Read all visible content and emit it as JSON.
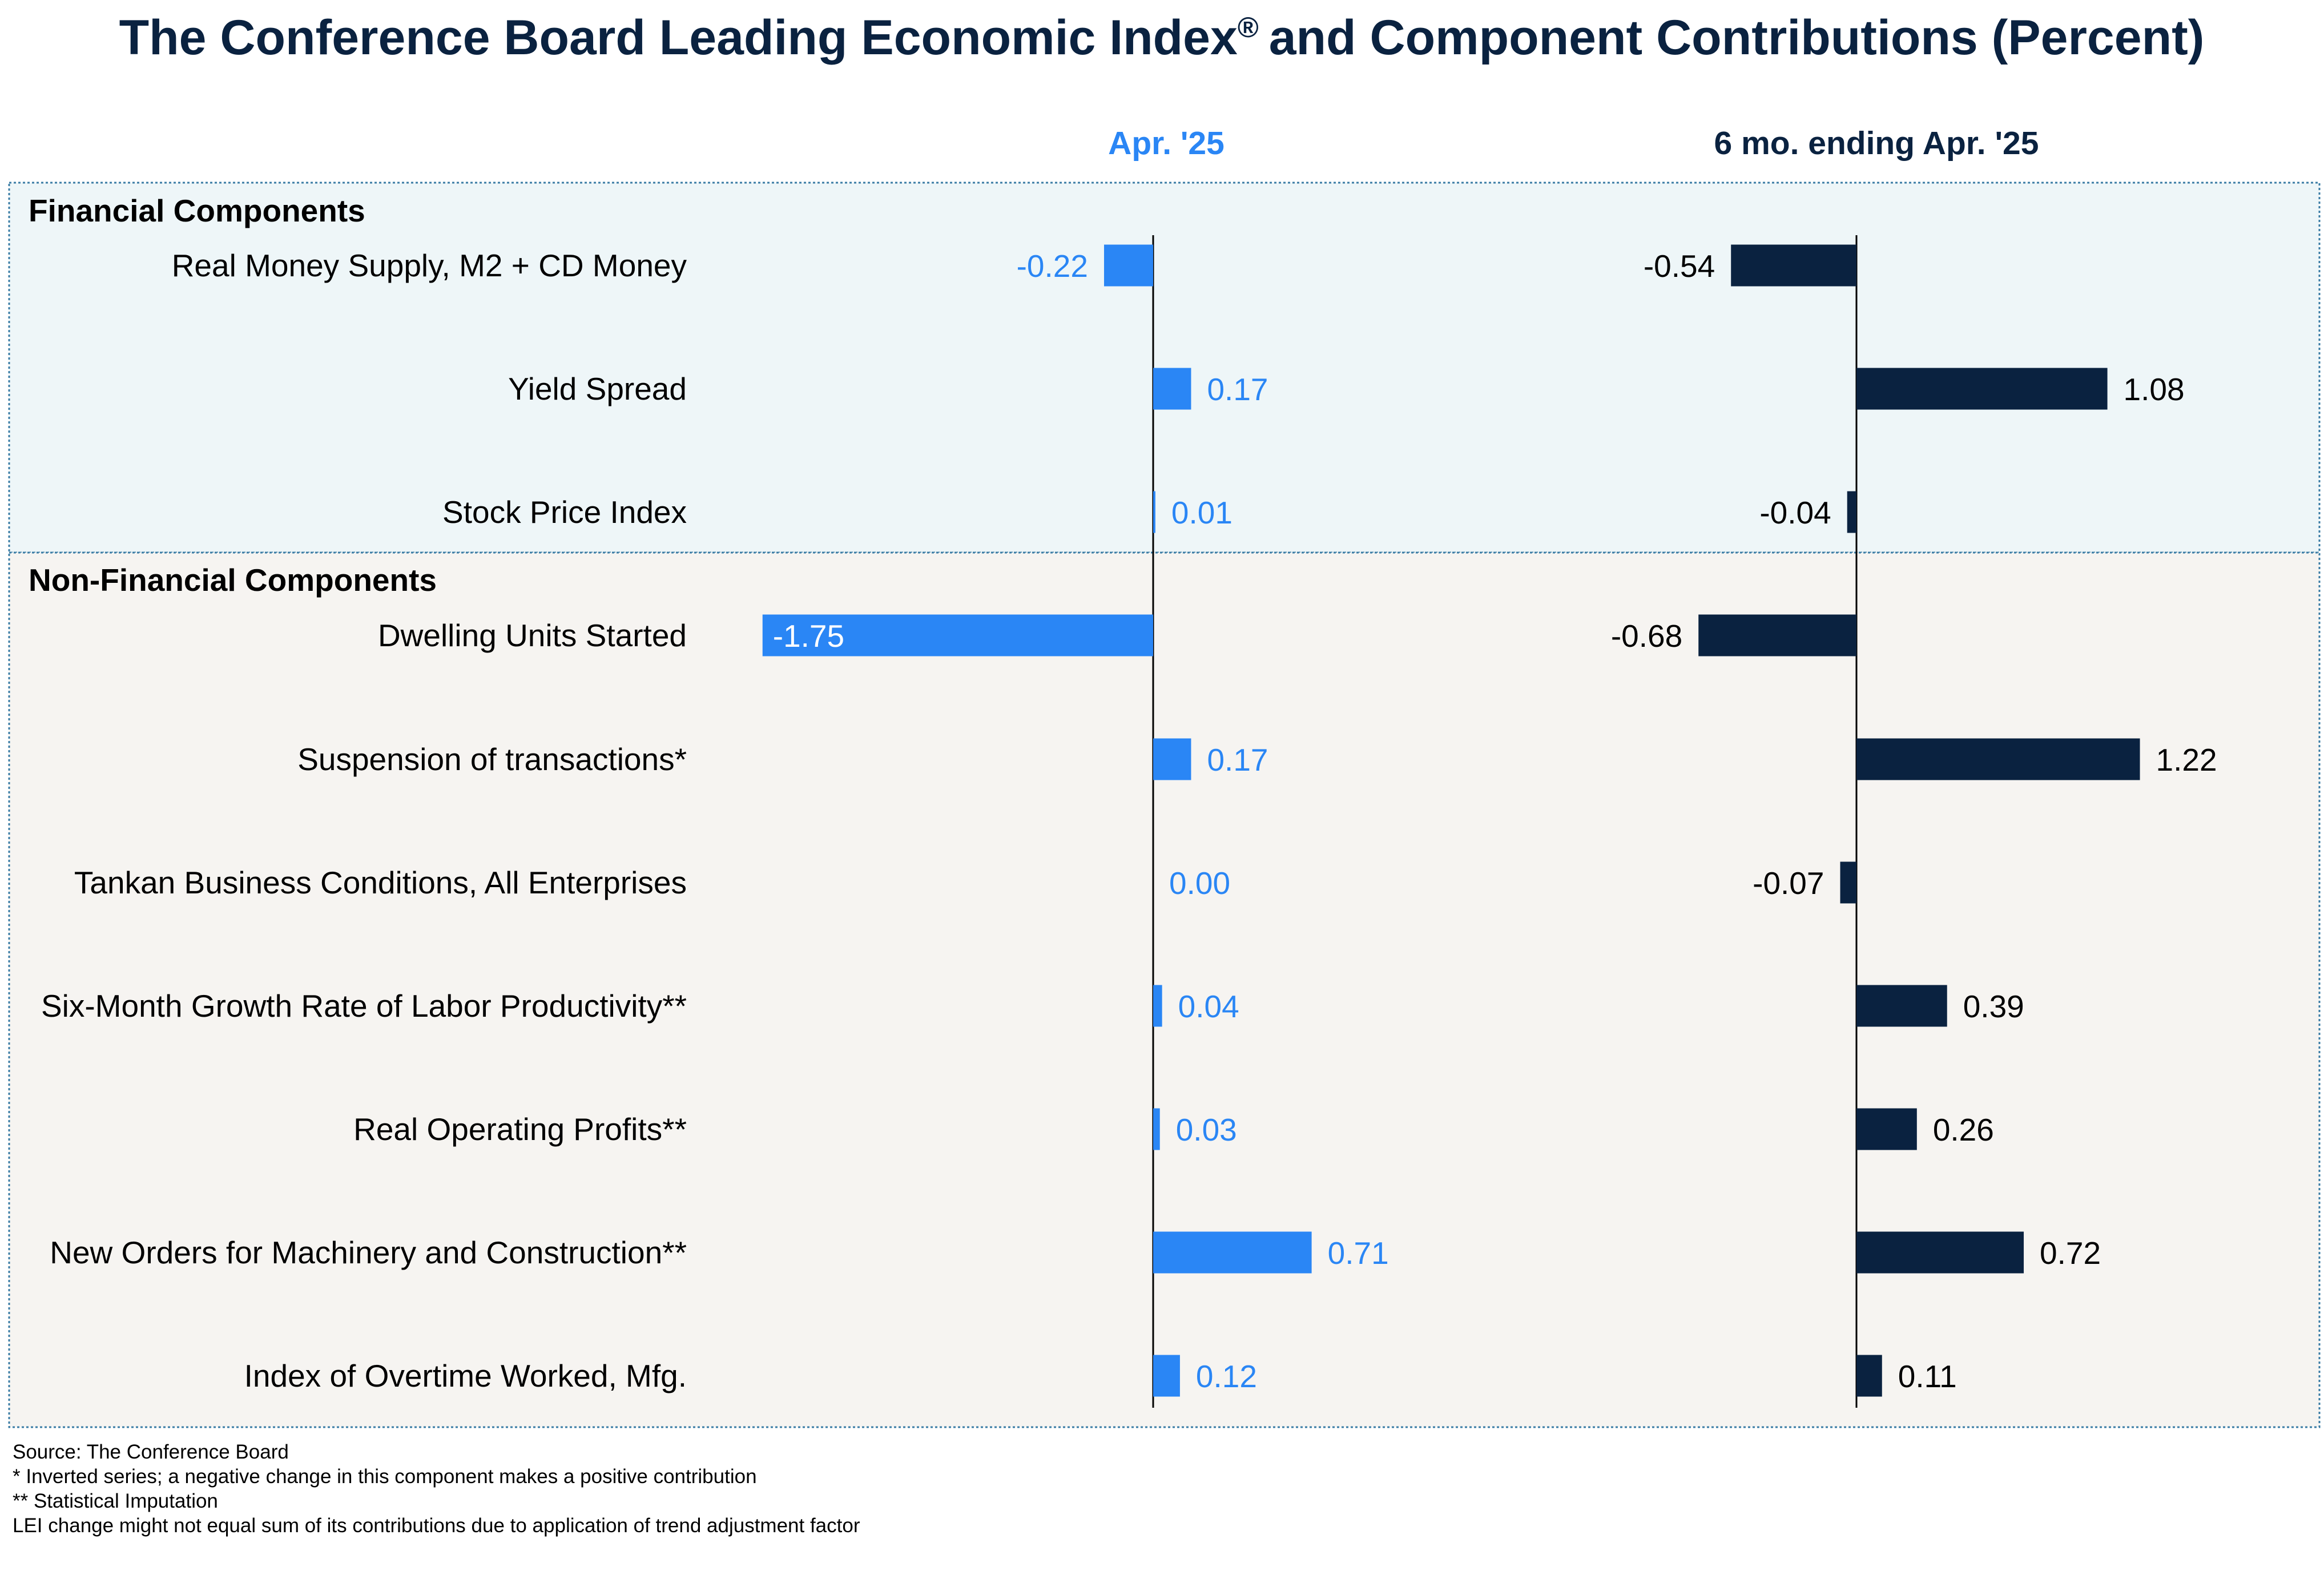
{
  "colors": {
    "title": "#0a2240",
    "apr_bar": "#2a86f5",
    "apr_text": "#2a86f5",
    "six_bar": "#0a2240",
    "six_text": "#000000",
    "financial_bg": "#eef6f8",
    "nonfinancial_bg": "#f6f4f1",
    "border": "#3a7ca5"
  },
  "chart_data": {
    "type": "bar",
    "orientation": "horizontal",
    "title": "The Conference Board Leading Economic Index",
    "title_registered_mark": "®",
    "title_suffix": "and Component Contributions (Percent)",
    "groups": [
      {
        "name": "Financial Components",
        "categories": [
          "Real Money Supply, M2 + CD Money",
          "Yield Spread",
          "Stock Price Index"
        ],
        "series": [
          {
            "name": "Apr. '25",
            "values": [
              -0.22,
              0.17,
              0.01
            ],
            "labels": [
              "-0.22",
              "0.17",
              "0.01"
            ]
          },
          {
            "name": "6 mo. ending Apr. '25",
            "values": [
              -0.54,
              1.08,
              -0.04
            ],
            "labels": [
              "-0.54",
              "1.08",
              "-0.04"
            ]
          }
        ]
      },
      {
        "name": "Non-Financial Components",
        "categories": [
          "Dwelling Units Started",
          "Suspension of transactions*",
          "Tankan Business Conditions, All Enterprises",
          "Six-Month Growth Rate of Labor Productivity**",
          "Real Operating Profits**",
          "New Orders for Machinery and Construction**",
          "Index of Overtime Worked, Mfg."
        ],
        "series": [
          {
            "name": "Apr. '25",
            "values": [
              -1.75,
              0.17,
              0.0,
              0.04,
              0.03,
              0.71,
              0.12
            ],
            "labels": [
              "-1.75",
              "0.17",
              "0.00",
              "0.04",
              "0.03",
              "0.71",
              "0.12"
            ]
          },
          {
            "name": "6 mo. ending Apr. '25",
            "values": [
              -0.68,
              1.22,
              -0.07,
              0.39,
              0.26,
              0.72,
              0.11
            ],
            "labels": [
              "-0.68",
              "1.22",
              "-0.07",
              "0.39",
              "0.26",
              "0.72",
              "0.11"
            ]
          }
        ]
      }
    ],
    "grid": false,
    "legend": "column headers"
  },
  "notes": [
    "Source: The Conference Board",
    "*  Inverted series; a negative  change in this component  makes a positive  contribution",
    "** Statistical  Imputation",
    "LEI change might not equal  sum of its contributions due to application of trend adjustment  factor"
  ]
}
